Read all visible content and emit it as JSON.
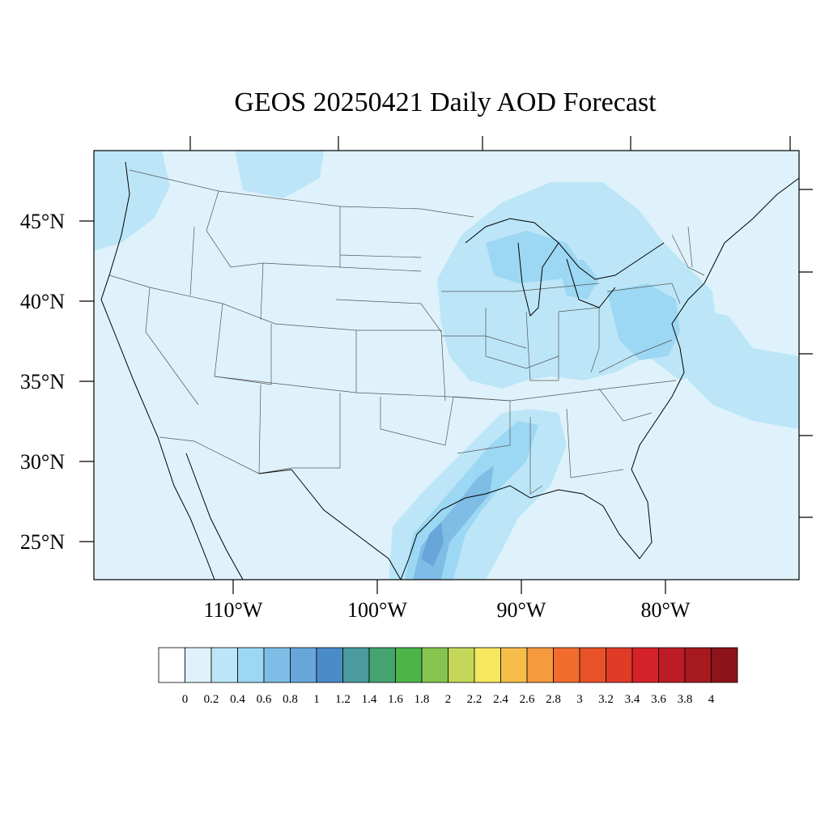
{
  "title": "GEOS 20250421 Daily AOD Forecast",
  "colors": {
    "background": "#dff2fb",
    "land_border": "#000000",
    "state_border": "#555555"
  },
  "lat_labels": [
    {
      "value": 45,
      "text": "45°N"
    },
    {
      "value": 40,
      "text": "40°N"
    },
    {
      "value": 35,
      "text": "35°N"
    },
    {
      "value": 30,
      "text": "30°N"
    },
    {
      "value": 25,
      "text": "25°N"
    }
  ],
  "lon_labels": [
    {
      "value": -110,
      "text": "110°W"
    },
    {
      "value": -100,
      "text": "100°W"
    },
    {
      "value": -90,
      "text": "90°W"
    },
    {
      "value": -80,
      "text": "80°W"
    }
  ],
  "colorbar": {
    "labels": [
      "0",
      "0.2",
      "0.4",
      "0.6",
      "0.8",
      "1",
      "1.2",
      "1.4",
      "1.6",
      "1.8",
      "2",
      "2.2",
      "2.4",
      "2.6",
      "2.8",
      "3",
      "3.2",
      "3.4",
      "3.6",
      "3.8",
      "4"
    ],
    "colors": [
      "#ffffff",
      "#dff2fb",
      "#bce6f8",
      "#9cd7f3",
      "#7fbde6",
      "#68a6da",
      "#4a8cc8",
      "#4a9a9e",
      "#44a36f",
      "#4bb548",
      "#86c44f",
      "#c4d75a",
      "#f5e75e",
      "#f7bd4a",
      "#f59a3e",
      "#f26d2d",
      "#e85229",
      "#df3b27",
      "#d42228",
      "#bd1c26",
      "#a5191f",
      "#8e141b"
    ]
  },
  "aod_regions": [
    {
      "name": "great-lakes-plume",
      "level": 0.3
    },
    {
      "name": "mid-atlantic-plume",
      "level": 0.5
    },
    {
      "name": "gulf-coast-plume",
      "level": 0.7
    },
    {
      "name": "texas-coast-max",
      "level": 0.9
    },
    {
      "name": "pacific-northwest",
      "level": 0.3
    },
    {
      "name": "atlantic-offshore",
      "level": 0.3
    }
  ]
}
